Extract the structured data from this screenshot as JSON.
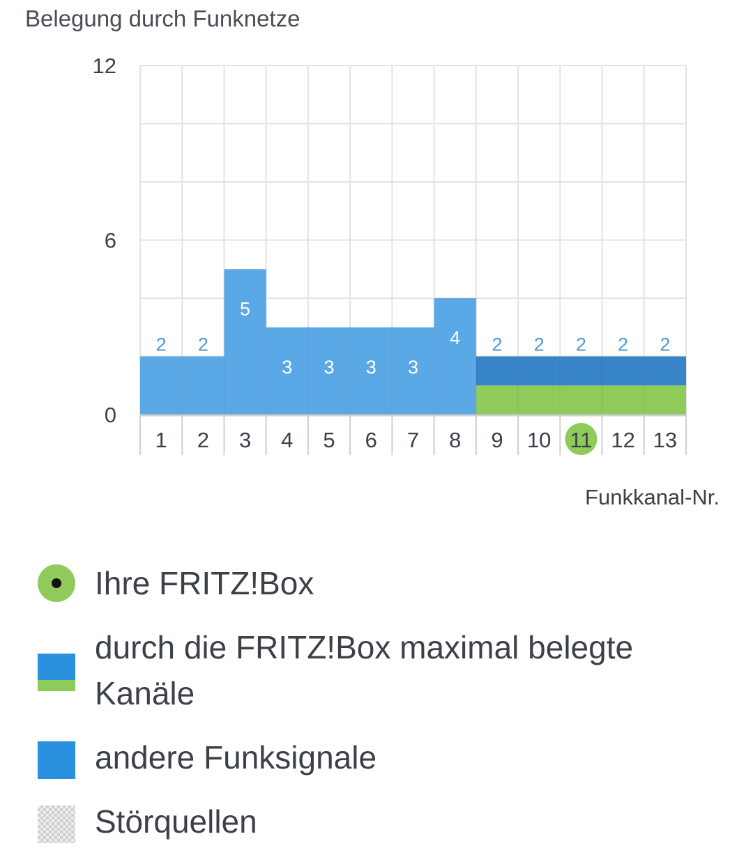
{
  "chart_data": {
    "type": "bar",
    "title": "Belegung durch Funknetze",
    "xlabel": "Funkkanal-Nr.",
    "ylabel": "",
    "categories": [
      "1",
      "2",
      "3",
      "4",
      "5",
      "6",
      "7",
      "8",
      "9",
      "10",
      "11",
      "12",
      "13"
    ],
    "ylim": [
      0,
      12
    ],
    "yticks": [
      "0",
      "6",
      "12"
    ],
    "grid": true,
    "highlighted_category": "11",
    "series": [
      {
        "name": "andere Funksignale",
        "color": "#5aa8e6",
        "values": [
          2,
          2,
          5,
          3,
          3,
          3,
          3,
          4,
          0,
          0,
          0,
          0,
          0
        ]
      },
      {
        "name": "durch die FRITZ!Box maximal belegte Kanäle",
        "color": "#8ecb5a",
        "values": [
          0,
          0,
          0,
          0,
          0,
          0,
          0,
          0,
          1,
          1,
          1,
          1,
          1
        ]
      },
      {
        "name": "",
        "color": "#3784c8",
        "values": [
          0,
          0,
          0,
          0,
          0,
          0,
          0,
          0,
          1,
          1,
          1,
          1,
          1
        ]
      }
    ],
    "data_labels": [
      "2",
      "2",
      "5",
      "3",
      "3",
      "3",
      "3",
      "4",
      "2",
      "2",
      "2",
      "2",
      "2"
    ]
  },
  "legend": {
    "items": [
      {
        "label": "Ihre FRITZ!Box",
        "icon": "green-dot-icon"
      },
      {
        "label": "durch die FRITZ!Box maximal belegte",
        "label2": "Kanäle",
        "icon": "blue-green-swatch"
      },
      {
        "label": "andere Funksignale",
        "icon": "blue-swatch"
      },
      {
        "label": "Störquellen",
        "icon": "checker-swatch"
      }
    ]
  },
  "colors": {
    "bar_light": "#5aa8e6",
    "bar_dark": "#3784c8",
    "fritzbox_green": "#8ecb5a",
    "label_blue": "#4a9bd8",
    "grid": "#e3e3e3",
    "axis": "#cfcfcf"
  }
}
